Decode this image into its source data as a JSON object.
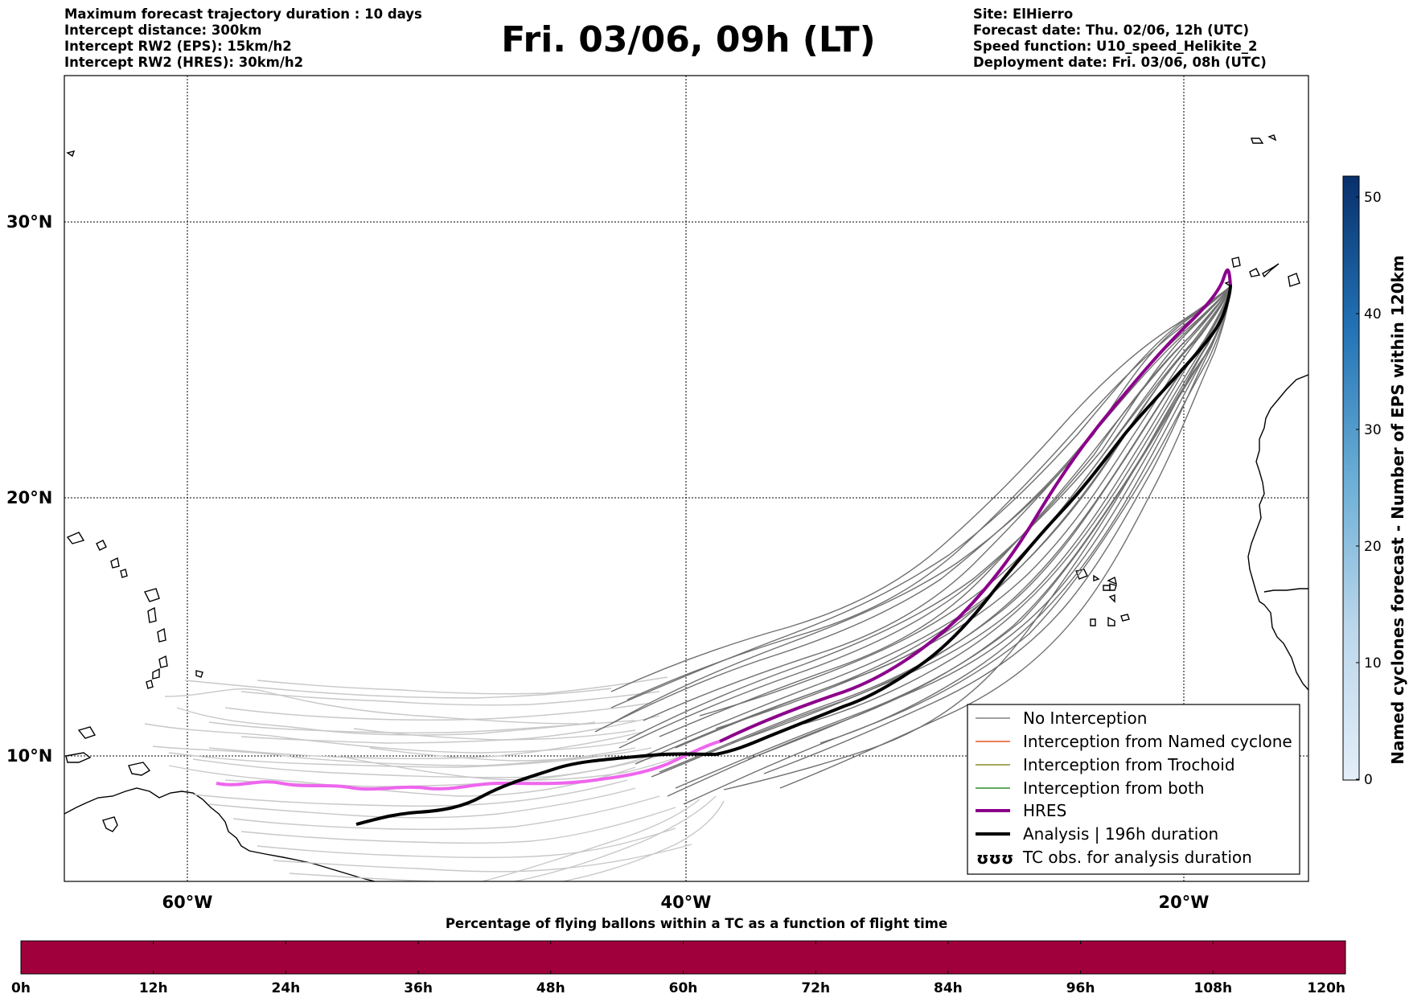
{
  "header_left": {
    "line1": "Maximum forecast trajectory duration : 10 days",
    "line2": "Intercept distance: 300km",
    "line3": "Intercept RW2 (EPS):  15km/h2",
    "line4": "Intercept RW2 (HRES): 30km/h2"
  },
  "header_right": {
    "line1": "Site: ElHierro",
    "line2": "Forecast date: Thu. 02/06, 12h (UTC)",
    "line3": "Speed function: U10_speed_Helikite_2",
    "line4": "Deployment date: Fri. 03/06, 08h (UTC)"
  },
  "title": "Fri. 03/06, 09h (LT)",
  "map": {
    "lat_labels": [
      "30°N",
      "20°N",
      "10°N"
    ],
    "lon_labels": [
      "60°W",
      "40°W",
      "20°W"
    ]
  },
  "legend": {
    "items": [
      {
        "label": "No Interception",
        "color": "#808080"
      },
      {
        "label": "Interception from Named cyclone",
        "color": "#e8561f"
      },
      {
        "label": "Interception from Trochoid",
        "color": "#8a8a2a"
      },
      {
        "label": "Interception from both",
        "color": "#2e8b2e"
      },
      {
        "label": "HRES",
        "color": "#8b008b"
      },
      {
        "label": "Analysis | 196h duration",
        "color": "#000000"
      },
      {
        "label": "TC obs. for analysis duration",
        "symbol": "ʊʊʊ"
      }
    ]
  },
  "right_colorbar": {
    "label": "Named cyclones forecast - Number of EPS within 120km",
    "ticks": [
      "0",
      "10",
      "20",
      "30",
      "40",
      "50"
    ],
    "color_low": "#e3eef9",
    "color_high": "#08306b"
  },
  "bottom_colorbar": {
    "title": "Percentage of flying ballons within a TC as a function of flight time",
    "ticks": [
      "0h",
      "12h",
      "24h",
      "36h",
      "48h",
      "60h",
      "72h",
      "84h",
      "96h",
      "108h",
      "120h"
    ],
    "color": "#a0003c"
  }
}
